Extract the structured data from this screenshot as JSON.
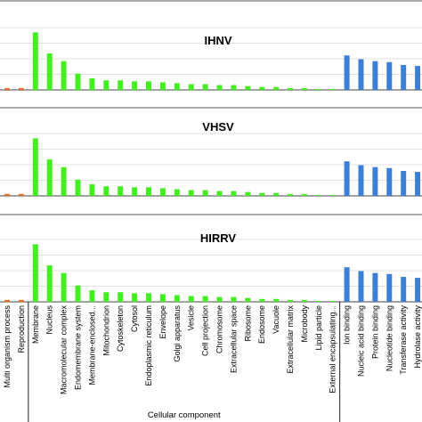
{
  "chart_data": {
    "type": "bar",
    "categories": [
      "Multi organism process",
      "Reproduction",
      "Membrane",
      "Nucleus",
      "Macromolecular complex",
      "Endomembrane system",
      "Membrane-enclosed...",
      "Mitochondrion",
      "Cytoskeleton",
      "Cytosol",
      "Endoplasmic reticulum",
      "Envelope",
      "Golgi apparatus",
      "Vesicle",
      "Cell projection",
      "Chromosome",
      "Extracellular space",
      "Ribosome",
      "Endosome",
      "Vacuole",
      "Extracellular matrix",
      "Microbody",
      "Lipid particle",
      "External encapsulating...",
      "Ion binding",
      "Nucleic acid binding",
      "Protein binding",
      "Nucleotide binding",
      "Transferase activity",
      "Hydrolase activity"
    ],
    "category_groups": [
      {
        "label": "",
        "first": 0,
        "last": 1,
        "color": "#e8702a"
      },
      {
        "label": "Cellular component",
        "first": 2,
        "last": 23,
        "color": "#44ee22"
      },
      {
        "label": "",
        "first": 24,
        "last": 29,
        "color": "#3a7fd8"
      }
    ],
    "ylim": [
      0,
      65
    ],
    "series": [
      {
        "name": "IHNV",
        "values": [
          2,
          2,
          60,
          38,
          30,
          17,
          12,
          10,
          10,
          9,
          9,
          8,
          7,
          6,
          6,
          5,
          5,
          4,
          3,
          3,
          2,
          2,
          1,
          1,
          36,
          32,
          30,
          29,
          26,
          25
        ]
      },
      {
        "name": "VHSV",
        "values": [
          2,
          2,
          60,
          38,
          30,
          17,
          12,
          10,
          10,
          9,
          9,
          8,
          7,
          6,
          6,
          5,
          5,
          4,
          3,
          3,
          2,
          2,
          1,
          1,
          36,
          32,
          30,
          29,
          26,
          25
        ]
      },
      {
        "name": "HIRRV",
        "values": [
          2,
          2,
          60,
          38,
          30,
          17,
          12,
          10,
          10,
          9,
          9,
          8,
          7,
          6,
          6,
          5,
          5,
          4,
          3,
          3,
          2,
          2,
          1,
          1,
          36,
          32,
          30,
          29,
          26,
          25
        ]
      }
    ]
  }
}
